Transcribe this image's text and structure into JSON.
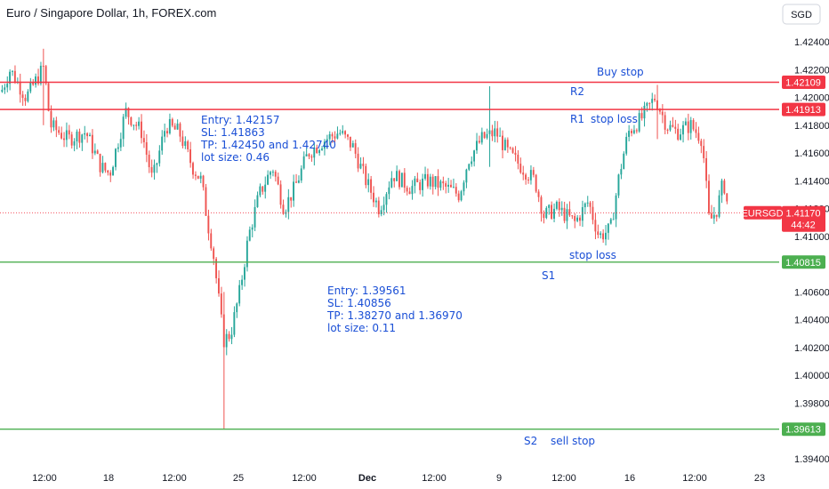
{
  "header": {
    "title": "Euro / Singapore Dollar, 1h, FOREX.com",
    "currency_button": "SGD"
  },
  "chart_data": {
    "type": "candlestick",
    "title": "Euro / Singapore Dollar, 1h, FOREX.com",
    "symbol": "EURSGD",
    "ylim": [
      1.3935,
      1.4252
    ],
    "y_ticks": [
      "1.42400",
      "1.42200",
      "1.42000",
      "1.41800",
      "1.41600",
      "1.41400",
      "1.41200",
      "1.41000",
      "1.40600",
      "1.40400",
      "1.40200",
      "1.40000",
      "1.39800",
      "1.39400"
    ],
    "x_ticks": [
      {
        "label": "12:00",
        "bold": false
      },
      {
        "label": "18",
        "bold": false
      },
      {
        "label": "12:00",
        "bold": false
      },
      {
        "label": "25",
        "bold": false
      },
      {
        "label": "12:00",
        "bold": false
      },
      {
        "label": "Dec",
        "bold": true
      },
      {
        "label": "12:00",
        "bold": false
      },
      {
        "label": "9",
        "bold": false
      },
      {
        "label": "12:00",
        "bold": false
      },
      {
        "label": "16",
        "bold": false
      },
      {
        "label": "12:00",
        "bold": false
      },
      {
        "label": "23",
        "bold": false
      }
    ],
    "levels": [
      {
        "name": "R2",
        "value": 1.42109,
        "label": "1.42109",
        "color": "#f23645"
      },
      {
        "name": "R1",
        "value": 1.41913,
        "label": "1.41913",
        "color": "#f23645"
      },
      {
        "name": "S1",
        "value": 1.40815,
        "label": "1.40815",
        "color": "#4caf50"
      },
      {
        "name": "S2",
        "value": 1.39613,
        "label": "1.39613",
        "color": "#4caf50"
      }
    ],
    "current_price": {
      "symbol_label": "EURSGD",
      "value": 1.4117,
      "label": "1.41170",
      "countdown": "44:42",
      "color": "#f23645"
    },
    "annotations": {
      "buy_stop": "Buy stop",
      "r2": "R2",
      "r1": "R1",
      "r1_stop_loss": "stop loss",
      "s1_stop_loss": "stop loss",
      "s1": "S1",
      "s2": "S2",
      "sell_stop": "sell stop",
      "long_trade": [
        "Entry: 1.42157",
        "SL: 1.41863",
        "TP: 1.42450 and 1.42740",
        "lot size: 0.46"
      ],
      "short_trade": [
        "Entry: 1.39561",
        "SL: 1.40856",
        "TP: 1.38270 and 1.36970",
        "lot size: 0.11"
      ]
    },
    "colors": {
      "up": "#26a69a",
      "down": "#ef5350",
      "annotation": "#1a4fd6"
    },
    "price_path": [
      [
        0,
        1.4204
      ],
      [
        10,
        1.422
      ],
      [
        28,
        1.42
      ],
      [
        48,
        1.4222
      ],
      [
        55,
        1.418
      ],
      [
        75,
        1.417
      ],
      [
        95,
        1.4175
      ],
      [
        112,
        1.415
      ],
      [
        122,
        1.4145
      ],
      [
        140,
        1.419
      ],
      [
        158,
        1.4175
      ],
      [
        170,
        1.414
      ],
      [
        185,
        1.418
      ],
      [
        200,
        1.4175
      ],
      [
        215,
        1.415
      ],
      [
        225,
        1.414
      ],
      [
        232,
        1.411
      ],
      [
        238,
        1.409
      ],
      [
        250,
        1.4025
      ],
      [
        258,
        1.403
      ],
      [
        268,
        1.406
      ],
      [
        278,
        1.41
      ],
      [
        290,
        1.413
      ],
      [
        305,
        1.415
      ],
      [
        318,
        1.412
      ],
      [
        330,
        1.4135
      ],
      [
        345,
        1.416
      ],
      [
        365,
        1.417
      ],
      [
        380,
        1.4175
      ],
      [
        395,
        1.4165
      ],
      [
        410,
        1.414
      ],
      [
        425,
        1.412
      ],
      [
        440,
        1.4145
      ],
      [
        460,
        1.4135
      ],
      [
        480,
        1.414
      ],
      [
        500,
        1.4135
      ],
      [
        515,
        1.413
      ],
      [
        525,
        1.4155
      ],
      [
        540,
        1.417
      ],
      [
        556,
        1.4175
      ],
      [
        570,
        1.416
      ],
      [
        585,
        1.415
      ],
      [
        600,
        1.414
      ],
      [
        610,
        1.4115
      ],
      [
        625,
        1.412
      ],
      [
        645,
        1.411
      ],
      [
        660,
        1.4125
      ],
      [
        672,
        1.41
      ],
      [
        685,
        1.4105
      ],
      [
        695,
        1.4145
      ],
      [
        705,
        1.4175
      ],
      [
        720,
        1.4185
      ],
      [
        735,
        1.42
      ],
      [
        748,
        1.418
      ],
      [
        760,
        1.4175
      ],
      [
        775,
        1.418
      ],
      [
        788,
        1.417
      ],
      [
        796,
        1.411
      ],
      [
        805,
        1.412
      ],
      [
        812,
        1.414
      ],
      [
        818,
        1.4117
      ]
    ]
  }
}
